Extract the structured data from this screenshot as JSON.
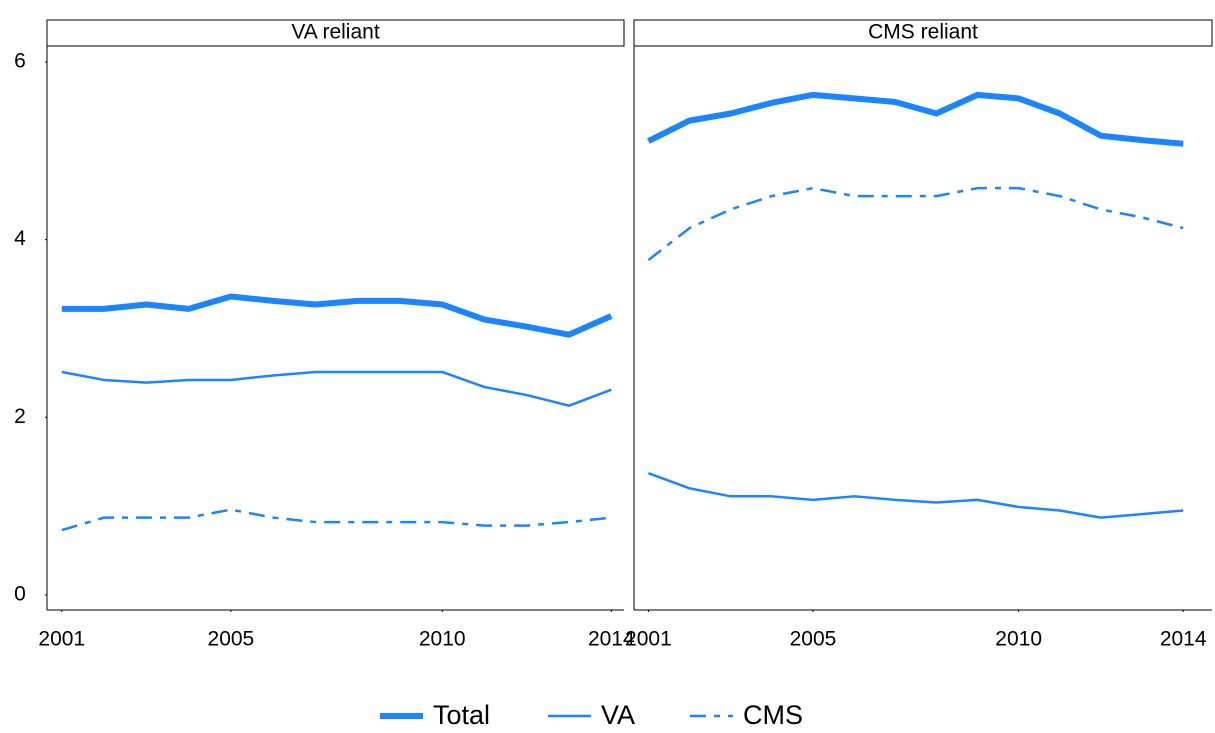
{
  "chart_data": [
    {
      "type": "line",
      "title": "VA reliant",
      "x": [
        2001,
        2002,
        2003,
        2004,
        2005,
        2006,
        2007,
        2008,
        2009,
        2010,
        2011,
        2012,
        2013,
        2014
      ],
      "xlim": [
        2000.65,
        2014.3
      ],
      "xticks": [
        2001,
        2005,
        2010,
        2014
      ],
      "ylim": [
        -0.17,
        6.18
      ],
      "yticks": [
        0,
        2,
        4,
        6
      ],
      "series": [
        {
          "name": "Total",
          "color": "#1a85ff",
          "width": 6,
          "dash": "none",
          "values": [
            3.22,
            3.22,
            3.27,
            3.22,
            3.36,
            3.31,
            3.27,
            3.31,
            3.31,
            3.27,
            3.1,
            3.02,
            2.93,
            3.14
          ]
        },
        {
          "name": "VA",
          "color": "#1a85ff",
          "width": 2.5,
          "dash": "none",
          "values": [
            2.51,
            2.42,
            2.39,
            2.42,
            2.42,
            2.47,
            2.51,
            2.51,
            2.51,
            2.51,
            2.34,
            2.25,
            2.13,
            2.31
          ]
        },
        {
          "name": "CMS",
          "color": "#1a85ff",
          "width": 2.5,
          "dash": "16 8 6 8",
          "values": [
            0.73,
            0.87,
            0.87,
            0.87,
            0.96,
            0.87,
            0.82,
            0.82,
            0.82,
            0.82,
            0.78,
            0.78,
            0.82,
            0.87
          ]
        }
      ]
    },
    {
      "type": "line",
      "title": "CMS reliant",
      "x": [
        2001,
        2002,
        2003,
        2004,
        2005,
        2006,
        2007,
        2008,
        2009,
        2010,
        2011,
        2012,
        2013,
        2014
      ],
      "xlim": [
        2000.65,
        2014.7
      ],
      "xticks": [
        2001,
        2005,
        2010,
        2014
      ],
      "ylim": [
        -0.17,
        6.18
      ],
      "series": [
        {
          "name": "Total",
          "color": "#1a85ff",
          "width": 6,
          "dash": "none",
          "values": [
            5.11,
            5.34,
            5.42,
            5.54,
            5.63,
            5.59,
            5.55,
            5.42,
            5.63,
            5.59,
            5.42,
            5.17,
            5.12,
            5.08
          ]
        },
        {
          "name": "VA",
          "color": "#1a85ff",
          "width": 2.5,
          "dash": "none",
          "values": [
            1.37,
            1.2,
            1.11,
            1.11,
            1.07,
            1.11,
            1.07,
            1.04,
            1.07,
            0.99,
            0.95,
            0.87,
            0.91,
            0.95
          ]
        },
        {
          "name": "CMS",
          "color": "#1a85ff",
          "width": 2.5,
          "dash": "16 8 6 8",
          "values": [
            3.77,
            4.13,
            4.34,
            4.49,
            4.58,
            4.49,
            4.49,
            4.49,
            4.58,
            4.58,
            4.49,
            4.34,
            4.25,
            4.13
          ]
        }
      ]
    }
  ]
}
